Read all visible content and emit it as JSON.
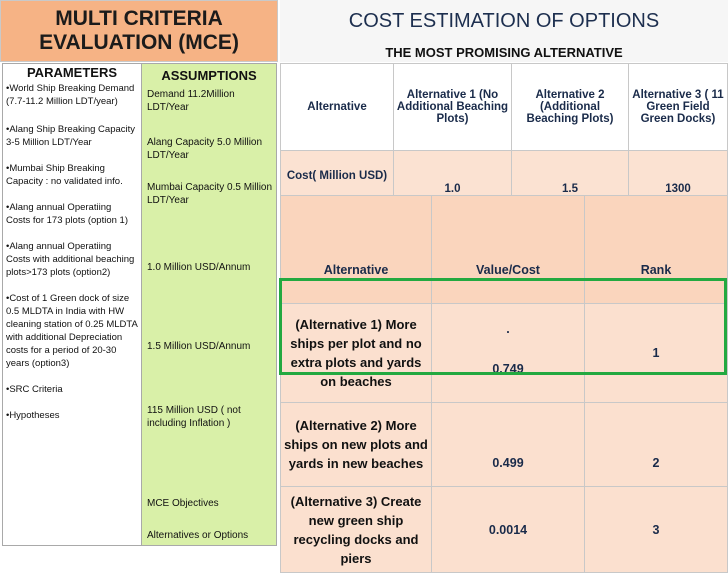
{
  "left_title": {
    "line1": "MULTI CRITERIA",
    "line2": "EVALUATION (MCE)"
  },
  "right_title": "COST ESTIMATION OF OPTIONS",
  "subtitle": "THE MOST PROMISING ALTERNATIVE",
  "parameters": {
    "heading": "PARAMETERS",
    "items": [
      "•World Ship Breaking Demand (7.7-11.2 Million LDT/year)",
      "•Alang Ship Breaking Capacity 3-5 Million LDT/Year",
      "•Mumbai Ship Breaking Capacity : no validated info.",
      "•Alang annual Operatiing Costs for 173 plots (option 1)",
      "•Alang annual Operatiing Costs with additional beaching plots>173 plots (option2)",
      "•Cost of 1 Green dock of size 0.5 MLDTA in India with HW cleaning station of 0.25 MLDTA with additional Depreciation costs for a period of 20-30 years (option3)",
      "•SRC Criteria",
      "•Hypotheses"
    ]
  },
  "assumptions": {
    "heading": "ASSUMPTIONS",
    "items": [
      "Demand 11.2Million LDT/Year",
      "Alang Capacity 5.0 Million LDT/Year",
      "Mumbai Capacity 0.5 Million LDT/Year",
      "1.0 Million USD/Annum",
      "1.5 Million USD/Annum",
      "115 Million USD ( not including Inflation )",
      "MCE Objectives",
      "Alternatives or Options"
    ]
  },
  "cost_table": {
    "headers": [
      "Alternative",
      "Alternative 1 (No Additional Beaching Plots)",
      "Alternative 2 (Additional Beaching Plots)",
      "Alternative 3 ( 11 Green Field Green Docks)"
    ],
    "row": [
      "Cost( Million USD)",
      "1.0",
      "1.5",
      "1300"
    ]
  },
  "eval_table": {
    "headers": [
      "Alternative",
      "Value/Cost",
      "Rank"
    ],
    "rows": [
      {
        "name": "(Alternative 1) More ships per plot and no extra plots and yards on beaches",
        "dot": ".",
        "value": "0.749",
        "rank": "1"
      },
      {
        "name": "(Alternative 2) More ships on new plots and yards in new beaches",
        "value": "0.499",
        "rank": "2"
      },
      {
        "name": "(Alternative 3) Create new green ship recycling docks and piers",
        "value": "0.0014",
        "rank": "3"
      }
    ]
  },
  "colors": {
    "title_bg": "#f6b385",
    "assumptions_bg": "#d9f0a8",
    "table_bg": "#fbe0cf",
    "highlight": "#23a940"
  }
}
